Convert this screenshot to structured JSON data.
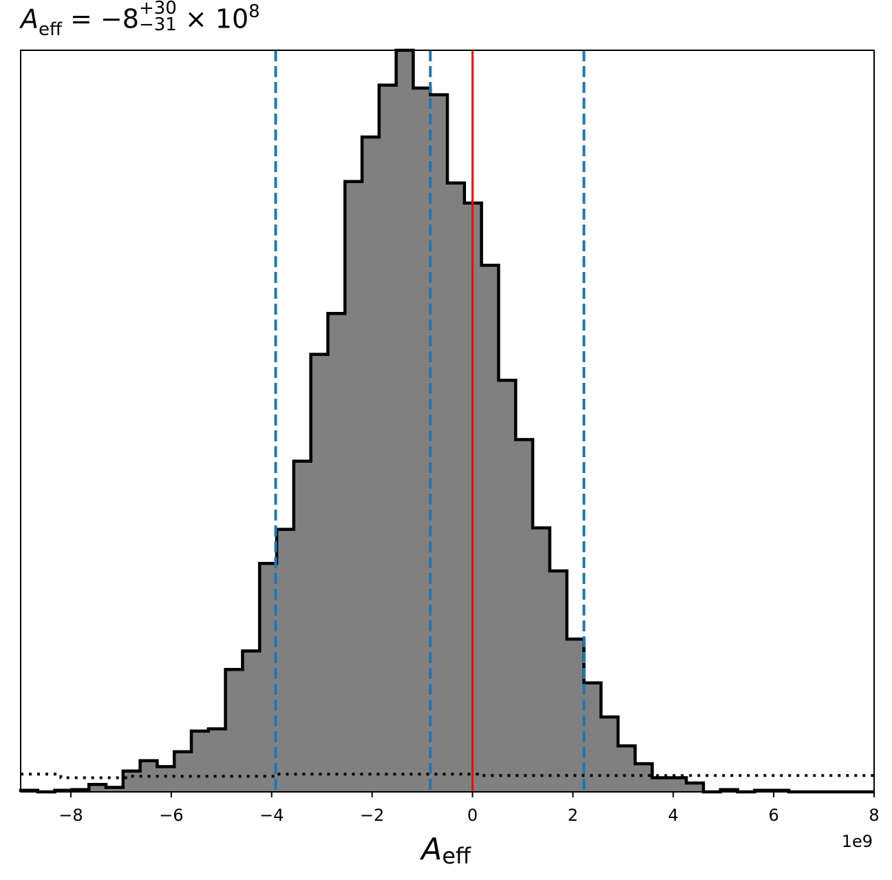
{
  "chart_data": {
    "type": "bar",
    "title": {
      "symbol": "A",
      "symbol_sub": "eff",
      "equals": " = −8",
      "upper": "+30",
      "lower": "−31",
      "times": " × 10",
      "exponent": "8"
    },
    "xlabel": {
      "symbol": "A",
      "sub": "eff"
    },
    "x_offset_label": "1e9",
    "x_scale": 1000000000,
    "xlim": [
      -9.0,
      8.0
    ],
    "ylim": [
      0,
      1.0
    ],
    "x_ticks": [
      -8,
      -6,
      -4,
      -2,
      0,
      2,
      4,
      6,
      8
    ],
    "x_tick_labels": [
      "−8",
      "−6",
      "−4",
      "−2",
      "0",
      "2",
      "4",
      "6",
      "8"
    ],
    "y_axis_visible": false,
    "grid": false,
    "histogram": {
      "bin_edges": [
        -9.0,
        -8.66,
        -8.32,
        -7.98,
        -7.64,
        -7.3,
        -6.96,
        -6.62,
        -6.28,
        -5.94,
        -5.6,
        -5.26,
        -4.92,
        -4.58,
        -4.24,
        -3.9,
        -3.56,
        -3.22,
        -2.88,
        -2.54,
        -2.2,
        -1.86,
        -1.52,
        -1.18,
        -0.84,
        -0.5,
        -0.16,
        0.18,
        0.52,
        0.86,
        1.2,
        1.54,
        1.88,
        2.22,
        2.56,
        2.9,
        3.24,
        3.58,
        3.92,
        4.26,
        4.6,
        4.94,
        5.28,
        5.62,
        5.96,
        6.3,
        6.64,
        6.98,
        7.32,
        7.66,
        8.0
      ],
      "counts": [
        0.002,
        0.0,
        0.002,
        0.003,
        0.01,
        0.006,
        0.028,
        0.042,
        0.034,
        0.054,
        0.082,
        0.085,
        0.165,
        0.19,
        0.308,
        0.354,
        0.446,
        0.59,
        0.645,
        0.823,
        0.883,
        0.953,
        1.0,
        0.949,
        0.94,
        0.821,
        0.794,
        0.71,
        0.555,
        0.475,
        0.356,
        0.298,
        0.206,
        0.147,
        0.101,
        0.062,
        0.038,
        0.019,
        0.019,
        0.012,
        0.0,
        0.003,
        0.0,
        0.002,
        0.002,
        0.0,
        0.0,
        0.0,
        0.0,
        0.0
      ],
      "fill_color": "#808080",
      "edge_color": "#000000"
    },
    "vlines": [
      {
        "x": -3.92,
        "style": "dashed",
        "color": "#1f77b4"
      },
      {
        "x": -0.84,
        "style": "dashed",
        "color": "#1f77b4"
      },
      {
        "x": 2.22,
        "style": "dashed",
        "color": "#1f77b4"
      },
      {
        "x": 0.0,
        "style": "solid",
        "color": "#ff0000"
      }
    ],
    "prior": {
      "style": "dotted",
      "color": "#000000",
      "x": [
        -9.0,
        -8.2,
        -8.2,
        -6.8,
        -6.8,
        -3.9,
        -3.9,
        0.1,
        0.1,
        8.0
      ],
      "y": [
        0.024,
        0.024,
        0.019,
        0.019,
        0.021,
        0.021,
        0.024,
        0.024,
        0.022,
        0.022
      ]
    }
  }
}
